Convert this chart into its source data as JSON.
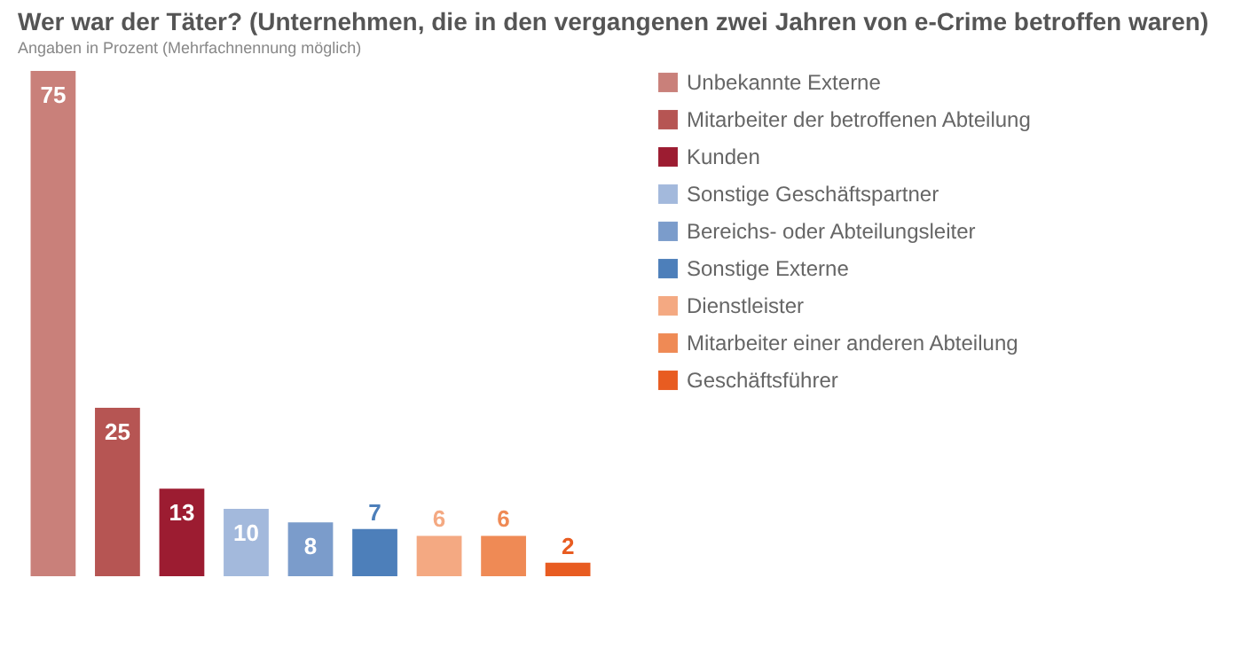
{
  "chart_data": {
    "type": "bar",
    "title": "Wer war der Täter? (Unternehmen, die in den vergangenen zwei Jahren von e-Crime betroffen waren)",
    "subtitle": "Angaben in Prozent (Mehrfachnennung möglich)",
    "categories": [
      null,
      null,
      null,
      null,
      null,
      null,
      null,
      null,
      null
    ],
    "series": [
      {
        "name": "Unbekannte Externe",
        "color": "#c9807a",
        "values": [
          75,
          null,
          null,
          null,
          null,
          null,
          null,
          null,
          null
        ]
      },
      {
        "name": "Mitarbeiter der betroffenen Abteilung",
        "color": "#b65553",
        "values": [
          null,
          25,
          null,
          null,
          null,
          null,
          null,
          null,
          null
        ]
      },
      {
        "name": "Kunden",
        "color": "#9c1c31",
        "values": [
          null,
          null,
          13,
          null,
          null,
          null,
          null,
          null,
          null
        ]
      },
      {
        "name": "Sonstige Geschäftspartner",
        "color": "#a3b9dc",
        "values": [
          null,
          null,
          null,
          10,
          null,
          null,
          null,
          null,
          null
        ]
      },
      {
        "name": "Bereichs- oder Abteilungsleiter",
        "color": "#7b9ccb",
        "values": [
          null,
          null,
          null,
          null,
          8,
          null,
          null,
          null,
          null
        ]
      },
      {
        "name": "Sonstige Externe",
        "color": "#4d7fba",
        "values": [
          null,
          null,
          null,
          null,
          null,
          7,
          null,
          null,
          null
        ]
      },
      {
        "name": "Dienstleister",
        "color": "#f4a982",
        "values": [
          null,
          null,
          null,
          null,
          null,
          null,
          6,
          null,
          null
        ]
      },
      {
        "name": "Mitarbeiter einer anderen Abteilung",
        "color": "#ef8a55",
        "values": [
          null,
          null,
          null,
          null,
          null,
          null,
          null,
          6,
          null
        ]
      },
      {
        "name": "Geschäftsführer",
        "color": "#e85c21",
        "values": [
          null,
          null,
          null,
          null,
          null,
          null,
          null,
          null,
          2
        ]
      }
    ],
    "stacked": true,
    "data_labels": true,
    "legend": "right",
    "tick_labels": false
  }
}
